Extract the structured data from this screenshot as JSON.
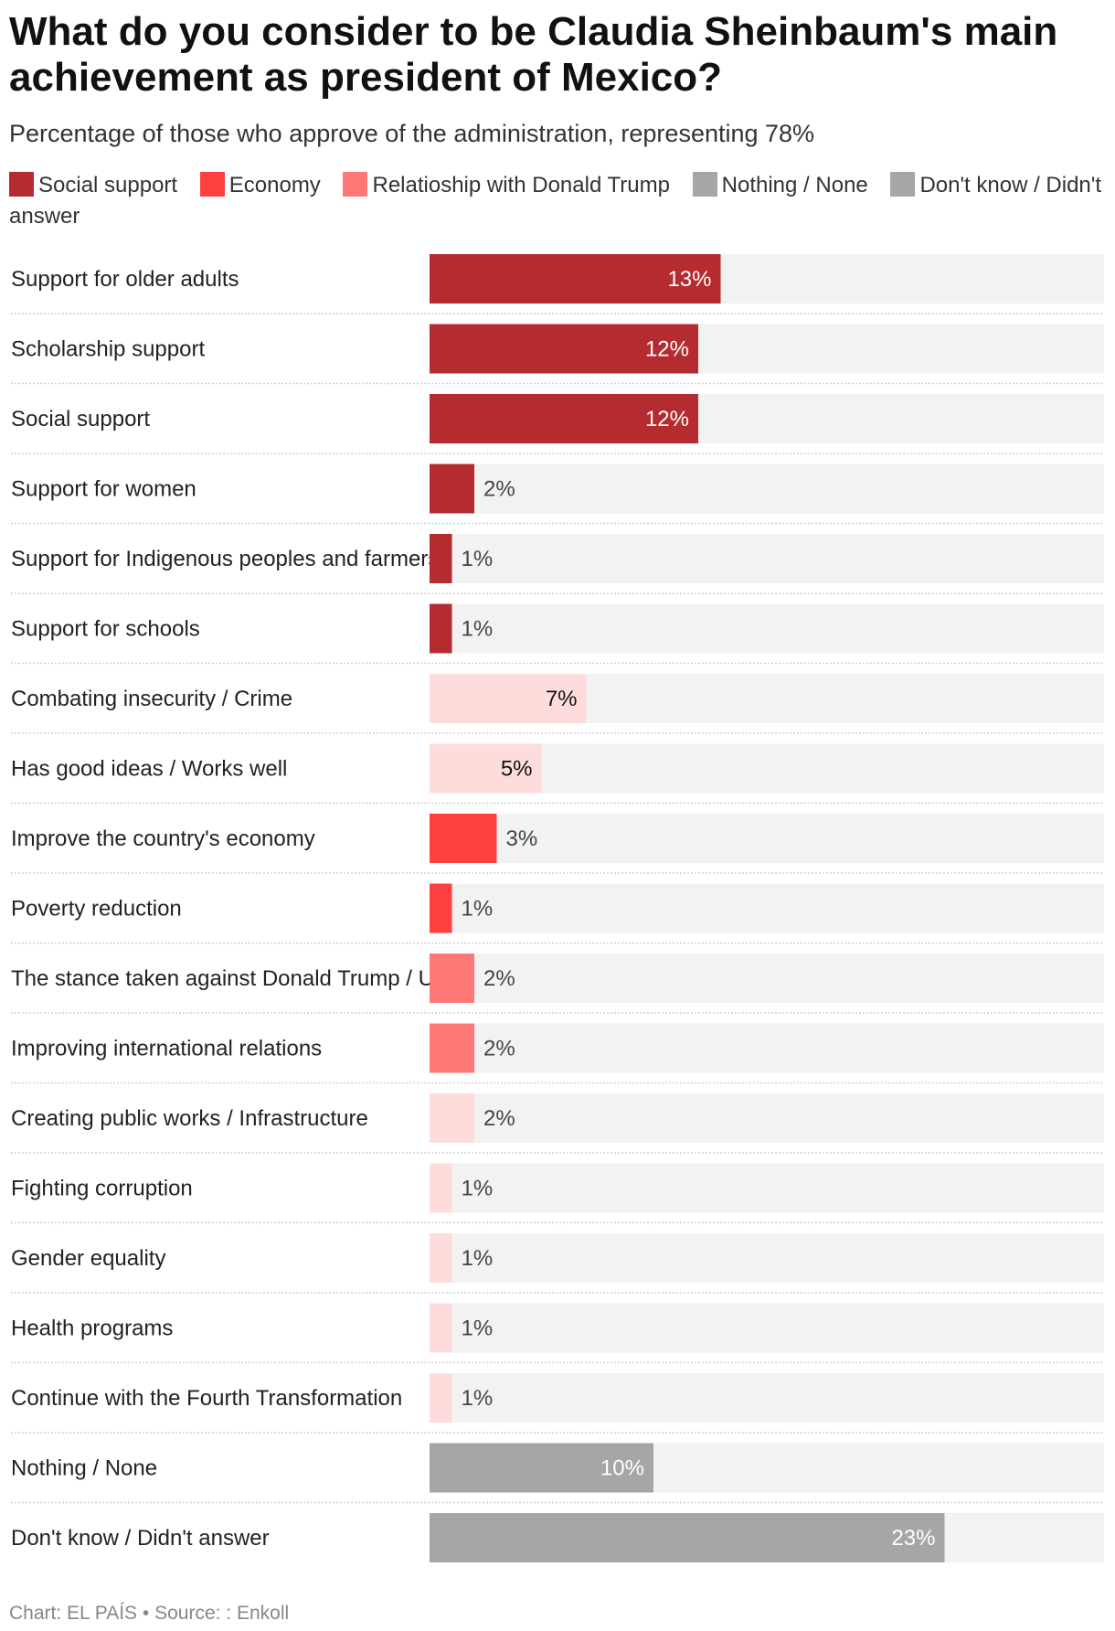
{
  "header": {
    "title": "What do you consider to be Claudia Sheinbaum's main achievement as president of Mexico?",
    "subtitle": "Percentage of those who approve of the administration, representing 78%"
  },
  "legend": [
    {
      "label": "Social support",
      "color": "#b42b30"
    },
    {
      "label": "Economy",
      "color": "#ff4040"
    },
    {
      "label": "Relatioship with Donald Trump",
      "color": "#ff7878"
    },
    {
      "label": "Nothing / None",
      "color": "#a6a6a6"
    },
    {
      "label": "Don't know / Didn't answer",
      "color": "#a6a6a6"
    }
  ],
  "footer": {
    "credit": "Chart: EL PAÍS • Source: : Enkoll"
  },
  "chart_data": {
    "type": "bar",
    "orientation": "horizontal",
    "xlim": [
      0,
      30
    ],
    "unit": "%",
    "categories": [
      "Support for older adults",
      "Scholarship support",
      "Social support",
      "Support for women",
      "Support for Indigenous peoples and farmers",
      "Support for schools",
      "Combating insecurity / Crime",
      "Has good ideas / Works well",
      "Improve the country's economy",
      "Poverty reduction",
      "The stance taken against Donald Trump / U.S.",
      "Improving international relations",
      "Creating public works / Infrastructure",
      "Fighting corruption",
      "Gender equality",
      "Health programs",
      "Continue with the Fourth Transformation",
      "Nothing / None",
      "Don't know / Didn't answer"
    ],
    "values": [
      13,
      12,
      12,
      2,
      1,
      1,
      7,
      5,
      3,
      1,
      2,
      2,
      2,
      1,
      1,
      1,
      1,
      10,
      23
    ],
    "value_labels": [
      "13%",
      "12%",
      "12%",
      "2%",
      "1%",
      "1%",
      "7%",
      "5%",
      "3%",
      "1%",
      "2%",
      "2%",
      "2%",
      "1%",
      "1%",
      "1%",
      "1%",
      "10%",
      "23%"
    ],
    "colors": [
      "#b42b30",
      "#b42b30",
      "#b42b30",
      "#b42b30",
      "#b42b30",
      "#b42b30",
      "#ffdcdc",
      "#ffdcdc",
      "#ff4040",
      "#ff4040",
      "#ff7878",
      "#ff7878",
      "#ffdcdc",
      "#ffdcdc",
      "#ffdcdc",
      "#ffdcdc",
      "#ffdcdc",
      "#a6a6a6",
      "#a6a6a6"
    ],
    "track_color": "#f2f2f2"
  }
}
